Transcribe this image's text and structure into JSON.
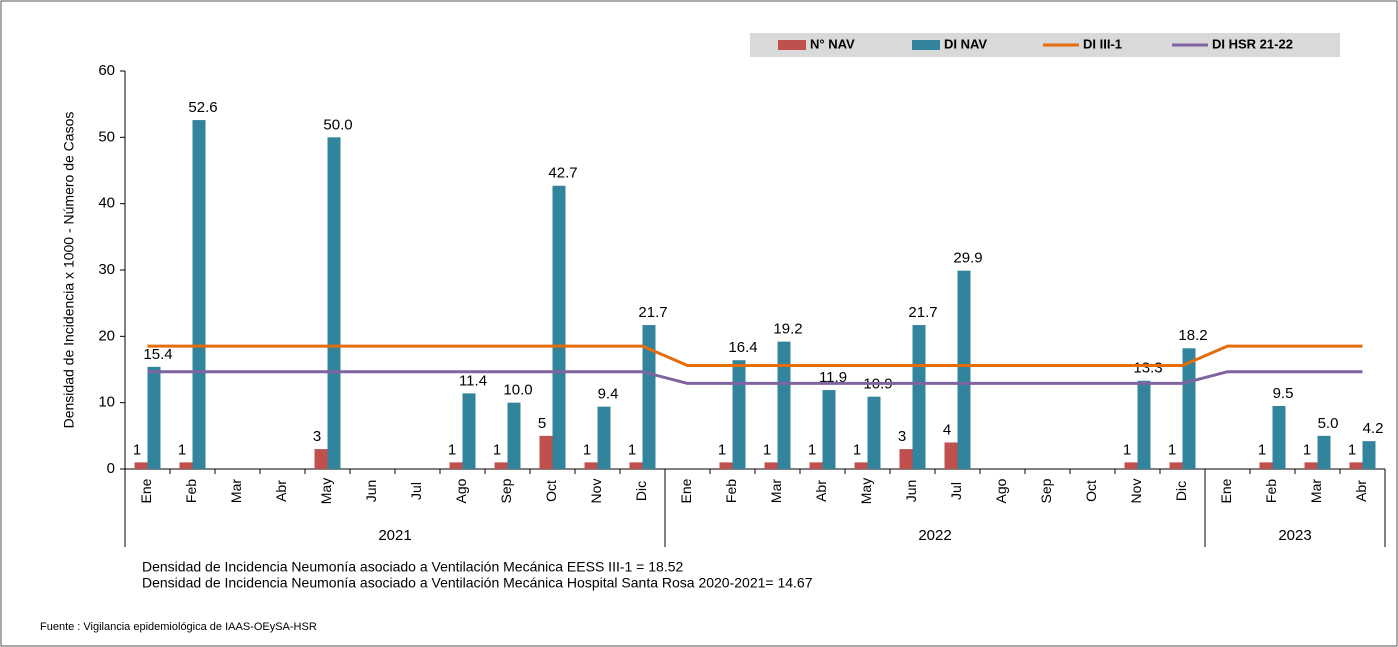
{
  "chart_data": {
    "type": "bar",
    "y_label": "Densidad de Incidencia x 1000 - Número de Casos",
    "groups": [
      {
        "label": "2021",
        "categories": [
          "Ene",
          "Feb",
          "Mar",
          "Abr",
          "May",
          "Jun",
          "Jul",
          "Ago",
          "Sep",
          "Oct",
          "Nov",
          "Dic"
        ]
      },
      {
        "label": "2022",
        "categories": [
          "Ene",
          "Feb",
          "Mar",
          "Abr",
          "May",
          "Jun",
          "Jul",
          "Ago",
          "Sep",
          "Oct",
          "Nov",
          "Dic"
        ]
      },
      {
        "label": "2023",
        "categories": [
          "Ene",
          "Feb",
          "Mar",
          "Abr"
        ]
      }
    ],
    "series": [
      {
        "name": "N° NAV",
        "type": "bar",
        "color": "#c0504d",
        "values": [
          1,
          1,
          null,
          null,
          3,
          null,
          null,
          1,
          1,
          5,
          1,
          1,
          null,
          1,
          1,
          1,
          1,
          3,
          4,
          null,
          null,
          null,
          1,
          1,
          null,
          1,
          1,
          1
        ]
      },
      {
        "name": "DI NAV",
        "type": "bar",
        "color": "#31849b",
        "values": [
          15.4,
          52.6,
          null,
          null,
          50.0,
          null,
          null,
          11.4,
          10.0,
          42.7,
          9.4,
          21.7,
          null,
          16.4,
          19.2,
          11.9,
          10.9,
          21.7,
          29.9,
          null,
          null,
          null,
          13.3,
          18.2,
          null,
          9.5,
          5.0,
          4.2
        ],
        "value_labels": [
          "15.4",
          "52.6",
          null,
          null,
          "50.0",
          null,
          null,
          "11.4",
          "10.0",
          "42.7",
          "9.4",
          "21.7",
          null,
          "16.4",
          "19.2",
          "11.9",
          "10.9",
          "21.7",
          "29.9",
          null,
          null,
          null,
          "13.3",
          "18.2",
          null,
          "9.5",
          "5.0",
          "4.2"
        ]
      },
      {
        "name": "DI III-1",
        "type": "line",
        "color": "#e46c0a",
        "values": [
          18.52,
          18.52,
          18.52,
          18.52,
          18.52,
          18.52,
          18.52,
          18.52,
          18.52,
          18.52,
          18.52,
          18.52,
          15.6,
          15.6,
          15.6,
          15.6,
          15.6,
          15.6,
          15.6,
          15.6,
          15.6,
          15.6,
          15.6,
          15.6,
          18.52,
          18.52,
          18.52,
          18.52
        ]
      },
      {
        "name": "DI HSR 21-22",
        "type": "line",
        "color": "#8064a2",
        "values": [
          14.67,
          14.67,
          14.67,
          14.67,
          14.67,
          14.67,
          14.67,
          14.67,
          14.67,
          14.67,
          14.67,
          14.67,
          12.9,
          12.9,
          12.9,
          12.9,
          12.9,
          12.9,
          12.9,
          12.9,
          12.9,
          12.9,
          12.9,
          12.9,
          14.67,
          14.67,
          14.67,
          14.67
        ]
      }
    ],
    "ylim": [
      0,
      60
    ],
    "yticks": [
      0,
      10,
      20,
      30,
      40,
      50,
      60
    ],
    "legend": "top-right",
    "notes": [
      "Densidad de Incidencia Neumonía asociado a Ventilación Mecánica EESS III-1 = 18.52",
      "Densidad de Incidencia Neumonía asociado a Ventilación Mecánica Hospital Santa Rosa 2020-2021=  14.67"
    ],
    "source": "Fuente : Vigilancia epidemiológica de IAAS-OEySA-HSR"
  }
}
